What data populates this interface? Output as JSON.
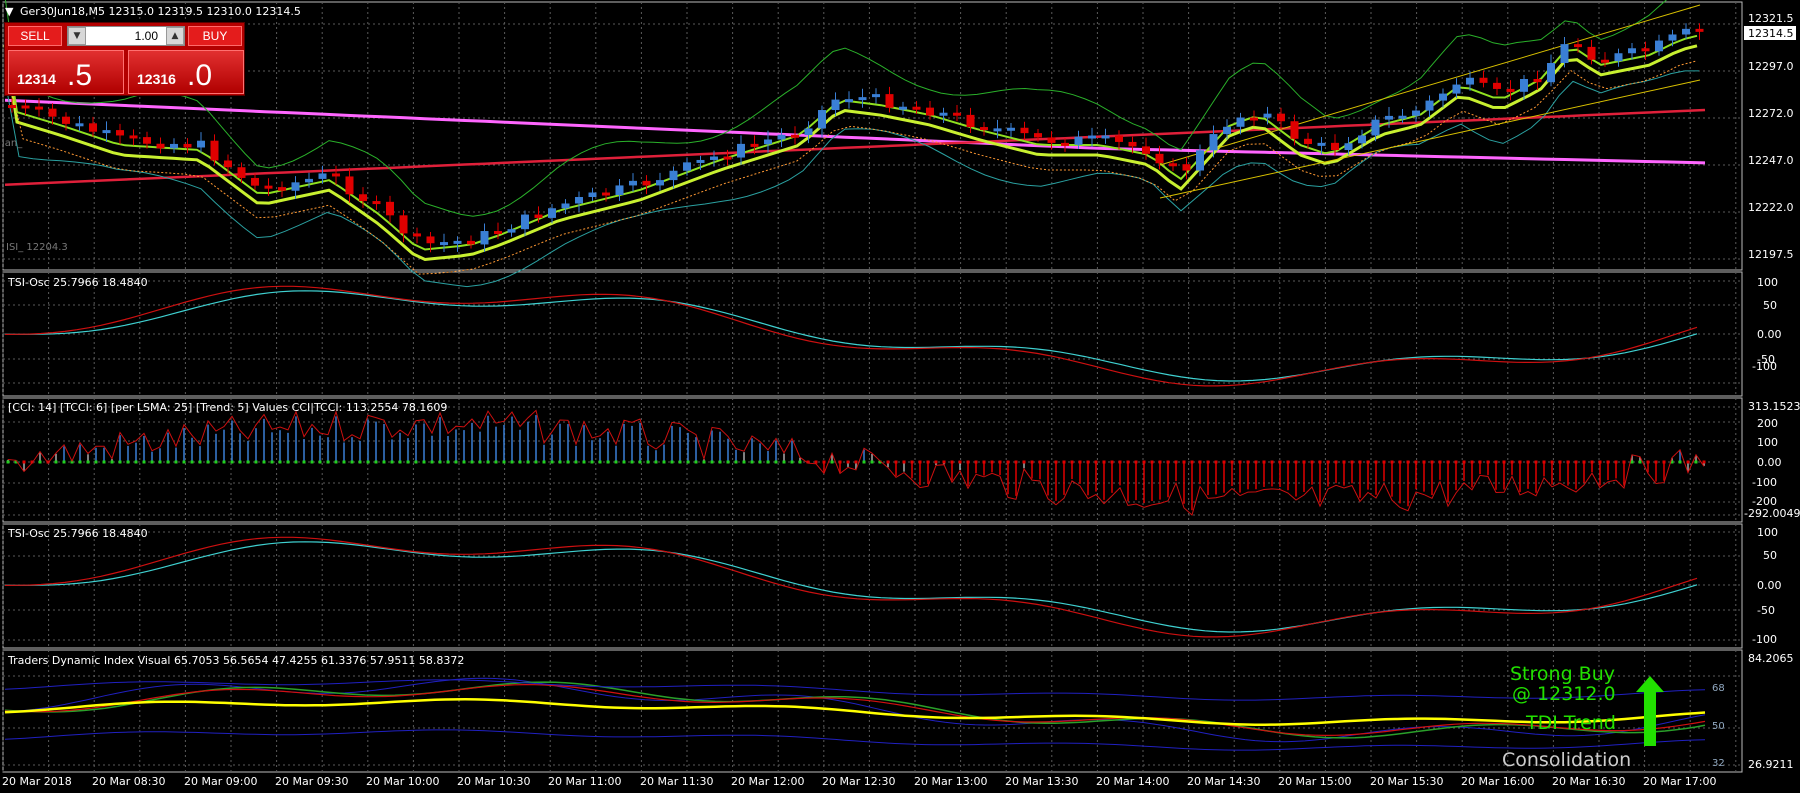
{
  "symbol_header": "Ger30Jun18,M5  12315.0 12319.5 12310.0 12314.5",
  "trade_panel": {
    "sell_label": "SELL",
    "buy_label": "BUY",
    "lot": "1.00",
    "bid_small": "12314",
    "bid_big": ".5",
    "ask_small": "12316",
    "ask_big": ".0"
  },
  "main_panel": {
    "price_labels": [
      "12321.5",
      "12297.0",
      "12272.0",
      "12247.0",
      "12222.0",
      "12197.5"
    ],
    "current_price": "12314.5",
    "ylim": [
      12187,
      12327
    ],
    "overlay_texts": [
      "ian_",
      "ISI_ 12204.3"
    ]
  },
  "panels": [
    {
      "id": "tsi1",
      "header": "TSI-Osc 25.7966 18.4840",
      "labels": [
        "100",
        "50",
        "0.00",
        "-50",
        "-100"
      ]
    },
    {
      "id": "cci",
      "header": "[CCI: 14] [TCCI: 6] [per LSMA: 25] [Trend: 5] Values CCI|TCCI: 113.2554 78.1609",
      "labels": [
        "313.1523",
        "200",
        "100",
        "0.00",
        "-100",
        "-200",
        "-292.0049"
      ]
    },
    {
      "id": "tsi2",
      "header": "TSI-Osc 25.7966 18.4840",
      "labels": [
        "100",
        "50",
        "0.00",
        "-50",
        "-100"
      ]
    },
    {
      "id": "tdi",
      "header": "Traders Dynamic Index Visual 65.7053 56.5654 47.4255 61.3376 57.9511 58.8372",
      "labels": [
        "84.2065",
        "68",
        "50",
        "32",
        "26.9211"
      ]
    }
  ],
  "tdi_signal": {
    "line1": "Strong Buy",
    "line2": "@ 12312.0",
    "line3": "TDI Trend",
    "line4": "Consolidation",
    "color_signal": "#22e000",
    "color_state": "#cccccc"
  },
  "time_labels": [
    "20 Mar 2018",
    "20 Mar 08:30",
    "20 Mar 09:00",
    "20 Mar 09:30",
    "20 Mar 10:00",
    "20 Mar 10:30",
    "20 Mar 11:00",
    "20 Mar 11:30",
    "20 Mar 12:00",
    "20 Mar 12:30",
    "20 Mar 13:00",
    "20 Mar 13:30",
    "20 Mar 14:00",
    "20 Mar 14:30",
    "20 Mar 15:00",
    "20 Mar 15:30",
    "20 Mar 16:00",
    "20 Mar 16:30",
    "20 Mar 17:00"
  ],
  "colors": {
    "bull": "#3a7fd5",
    "bear": "#e00000",
    "grid": "#5a5a5a",
    "ma_pink": "#ff66ff",
    "ma_red": "#e0203a",
    "ma_yellow": "#c8f030",
    "envelope_green": "#2ab02a",
    "tsi_cyan": "#3fd0d0",
    "tsi_red": "#cc1010",
    "tdi_yellow": "#ffff00"
  }
}
